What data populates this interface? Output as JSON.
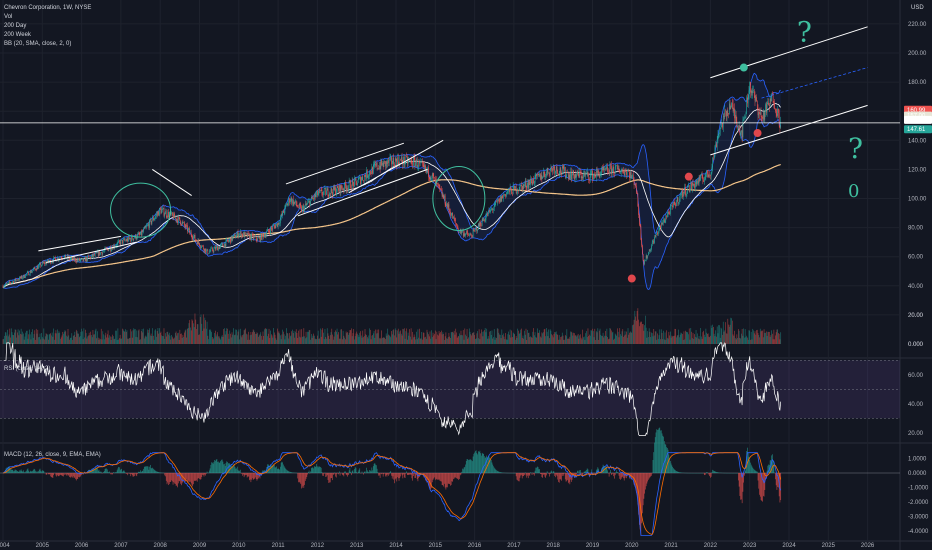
{
  "legend": {
    "title": "Chevron Corporation, 1W, NYSE",
    "lines": [
      "Vol",
      "200 Day",
      "200 Week",
      "BB (20, SMA, close, 2, 0)"
    ]
  },
  "rsi_label": "RSI (close, 14, 2)",
  "macd_label": "MACD (12, 26, close, 9, EMA, EMA)",
  "currency": "USD",
  "colors": {
    "background": "#131722",
    "candle_up": "#26a69a",
    "candle_down": "#ef5350",
    "bb": "#2962ff",
    "ma200d": "#ffffff",
    "ma200w": "#f5c58a",
    "drawing": "#ffffff",
    "annotation_green": "#3fbf9f",
    "annotation_red": "#e0474c",
    "rsi": "#ffffff",
    "macd_line": "#2962ff",
    "signal_line": "#ff6d00"
  },
  "chart_data": [
    {
      "type": "line",
      "name": "price",
      "x_ticks": [
        "2004",
        "2005",
        "2006",
        "2007",
        "2008",
        "2009",
        "2010",
        "2011",
        "2012",
        "2013",
        "2014",
        "2015",
        "2016",
        "2017",
        "2018",
        "2019",
        "2020",
        "2021",
        "2022",
        "2023",
        "2024",
        "2025",
        "2026"
      ],
      "y_ticks": [
        "0.000",
        "20.00",
        "40.00",
        "60.00",
        "80.00",
        "100.00",
        "120.00",
        "140.00",
        "160.00",
        "180.00",
        "200.00",
        "220.00"
      ],
      "ylim": [
        0,
        220
      ],
      "price_points": {
        "x": [
          2004.0,
          2004.5,
          2005.0,
          2005.5,
          2006.0,
          2006.5,
          2007.0,
          2007.5,
          2008.0,
          2008.5,
          2008.9,
          2009.2,
          2009.6,
          2010.0,
          2010.5,
          2011.0,
          2011.3,
          2011.6,
          2012.0,
          2012.5,
          2013.0,
          2013.5,
          2014.0,
          2014.5,
          2014.9,
          2015.2,
          2015.6,
          2015.9,
          2016.3,
          2016.8,
          2017.2,
          2017.6,
          2018.0,
          2018.5,
          2019.0,
          2019.5,
          2019.9,
          2020.1,
          2020.3,
          2020.6,
          2020.9,
          2021.3,
          2021.7,
          2022.0,
          2022.2,
          2022.5,
          2022.8,
          2023.0,
          2023.3,
          2023.6,
          2023.8
        ],
        "y": [
          40,
          46,
          55,
          60,
          57,
          63,
          70,
          75,
          92,
          85,
          72,
          63,
          68,
          76,
          72,
          83,
          100,
          92,
          103,
          106,
          111,
          122,
          126,
          125,
          116,
          101,
          78,
          74,
          88,
          104,
          108,
          114,
          121,
          116,
          116,
          120,
          119,
          110,
          55,
          74,
          89,
          104,
          112,
          118,
          145,
          165,
          145,
          178,
          155,
          170,
          149
        ]
      },
      "annotation_markers": {
        "green_dot": {
          "x": 2022.85,
          "y": 190
        },
        "red_dots": [
          {
            "x": 2020.0,
            "y": 45
          },
          {
            "x": 2021.45,
            "y": 115
          },
          {
            "x": 2023.2,
            "y": 145
          }
        ]
      },
      "price_badges": [
        {
          "label": "160.99",
          "color": "#ef5350"
        },
        {
          "label": "157.00",
          "color": "#e7e5d6"
        },
        {
          "label": "154.00",
          "color": "#ffffff"
        },
        {
          "label": "147.61",
          "color": "#26a69a"
        }
      ],
      "handwriting": [
        "?",
        "?",
        "0"
      ]
    },
    {
      "type": "bar",
      "name": "volume",
      "y_ticks": [
        "0.000",
        "20.00"
      ]
    },
    {
      "type": "line",
      "name": "rsi",
      "y_ticks": [
        "60.00",
        "40.00",
        "20.00"
      ],
      "ylim": [
        20,
        80
      ],
      "band": [
        30,
        70
      ]
    },
    {
      "type": "bar",
      "name": "macd",
      "y_ticks": [
        "1.0000",
        "0.0000",
        "-1.0000",
        "-2.0000",
        "-3.0000",
        "-4.0000"
      ],
      "ylim": [
        -4.3,
        1.5
      ]
    }
  ]
}
